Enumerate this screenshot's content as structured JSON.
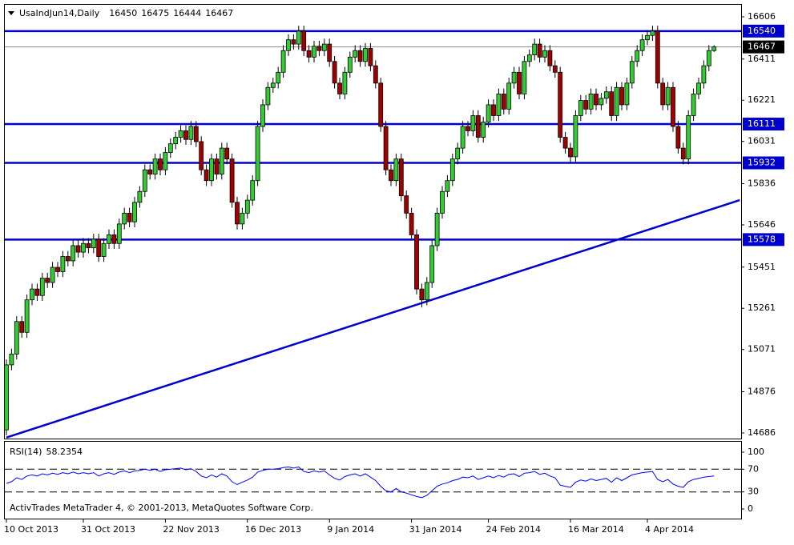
{
  "chart_data": {
    "type": "candlestick",
    "title": "UsaIndJun14,Daily",
    "categories": [
      "10 Oct 2013",
      null,
      null,
      null,
      null,
      null,
      null,
      null,
      null,
      null,
      null,
      null,
      null,
      null,
      null,
      "31 Oct 2013",
      null,
      null,
      null,
      null,
      null,
      null,
      null,
      null,
      null,
      null,
      null,
      null,
      null,
      null,
      null,
      "22 Nov 2013",
      null,
      null,
      null,
      null,
      null,
      null,
      null,
      null,
      null,
      null,
      null,
      null,
      null,
      null,
      null,
      "16 Dec 2013",
      null,
      null,
      null,
      null,
      null,
      null,
      null,
      null,
      null,
      null,
      null,
      null,
      null,
      null,
      null,
      "9 Jan 2014",
      null,
      null,
      null,
      null,
      null,
      null,
      null,
      null,
      null,
      null,
      null,
      null,
      null,
      null,
      null,
      "31 Jan 2014",
      null,
      null,
      null,
      null,
      null,
      null,
      null,
      null,
      null,
      null,
      null,
      null,
      null,
      null,
      "24 Feb 2014",
      null,
      null,
      null,
      null,
      null,
      null,
      null,
      null,
      null,
      null,
      null,
      null,
      null,
      null,
      null,
      "16 Mar 2014",
      null,
      null,
      null,
      null,
      null,
      null,
      null,
      null,
      null,
      null,
      null,
      null,
      null,
      null,
      "4 Apr 2014",
      null,
      null,
      null,
      null,
      null,
      null,
      null,
      null,
      null,
      null,
      null,
      null,
      null
    ],
    "open": [
      14700,
      15000,
      15050,
      15200,
      15150,
      15300,
      15350,
      15320,
      15400,
      15380,
      15450,
      15430,
      15500,
      15480,
      15550,
      15520,
      15560,
      15540,
      15580,
      15500,
      15560,
      15600,
      15560,
      15650,
      15700,
      15660,
      15750,
      15800,
      15900,
      15880,
      15950,
      15900,
      15980,
      16020,
      16050,
      16080,
      16040,
      16100,
      16030,
      15900,
      15850,
      15950,
      15880,
      16000,
      15950,
      15750,
      15650,
      15700,
      15760,
      15850,
      16100,
      16200,
      16280,
      16300,
      16350,
      16450,
      16500,
      16480,
      16540,
      16450,
      16420,
      16470,
      16450,
      16480,
      16400,
      16300,
      16250,
      16350,
      16420,
      16450,
      16400,
      16460,
      16380,
      16300,
      16100,
      15900,
      15850,
      15950,
      15780,
      15700,
      15600,
      15350,
      15300,
      15380,
      15550,
      15700,
      15800,
      15850,
      15950,
      16000,
      16100,
      16080,
      16150,
      16050,
      16120,
      16200,
      16150,
      16250,
      16180,
      16300,
      16350,
      16250,
      16400,
      16430,
      16480,
      16420,
      16450,
      16380,
      16350,
      16050,
      16000,
      15960,
      16150,
      16220,
      16180,
      16250,
      16200,
      16230,
      16260,
      16150,
      16280,
      16200,
      16300,
      16400,
      16450,
      16500,
      16520,
      16540,
      16300,
      16200,
      16280,
      16100,
      16000,
      15950,
      16150,
      16250,
      16300,
      16380,
      16450
    ],
    "high": [
      15025,
      15075,
      15225,
      15225,
      15325,
      15375,
      15375,
      15425,
      15425,
      15475,
      15475,
      15525,
      15525,
      15575,
      15575,
      15585,
      15585,
      15605,
      15605,
      15585,
      15625,
      15625,
      15675,
      15725,
      15725,
      15775,
      15825,
      15925,
      15925,
      15975,
      15975,
      16005,
      16045,
      16075,
      16105,
      16105,
      16125,
      16125,
      16055,
      15925,
      15975,
      15975,
      16025,
      16025,
      15975,
      15775,
      15725,
      15785,
      15875,
      16125,
      16225,
      16305,
      16325,
      16375,
      16475,
      16525,
      16525,
      16565,
      16565,
      16475,
      16495,
      16495,
      16505,
      16505,
      16425,
      16325,
      16375,
      16445,
      16475,
      16475,
      16485,
      16485,
      16405,
      16325,
      16125,
      15925,
      15975,
      15975,
      15805,
      15725,
      15625,
      15375,
      15405,
      15575,
      15725,
      15825,
      15875,
      15975,
      16025,
      16125,
      16125,
      16175,
      16175,
      16145,
      16225,
      16225,
      16275,
      16275,
      16325,
      16375,
      16375,
      16425,
      16455,
      16505,
      16505,
      16475,
      16475,
      16405,
      16375,
      16075,
      16025,
      16175,
      16245,
      16245,
      16275,
      16275,
      16255,
      16285,
      16285,
      16305,
      16305,
      16325,
      16425,
      16475,
      16525,
      16545,
      16565,
      16565,
      16325,
      16305,
      16305,
      16125,
      16025,
      16175,
      16275,
      16325,
      16405,
      16475,
      16475
    ],
    "low": [
      14675,
      14975,
      15025,
      15125,
      15125,
      15275,
      15295,
      15295,
      15355,
      15355,
      15405,
      15405,
      15455,
      15455,
      15495,
      15495,
      15515,
      15515,
      15475,
      15475,
      15535,
      15535,
      15535,
      15625,
      15635,
      15635,
      15725,
      15775,
      15855,
      15855,
      15875,
      15875,
      15955,
      15995,
      16025,
      16015,
      16015,
      16005,
      15875,
      15825,
      15825,
      15855,
      15855,
      15925,
      15725,
      15625,
      15625,
      15675,
      15735,
      15825,
      16075,
      16175,
      16255,
      16275,
      16325,
      16425,
      16455,
      16455,
      16425,
      16395,
      16395,
      16425,
      16425,
      16375,
      16275,
      16225,
      16225,
      16325,
      16395,
      16375,
      16375,
      16355,
      16275,
      16075,
      15875,
      15825,
      15825,
      15755,
      15675,
      15575,
      15325,
      15265,
      15275,
      15355,
      15525,
      15675,
      15775,
      15825,
      15925,
      15975,
      16055,
      16055,
      16025,
      16025,
      16095,
      16125,
      16125,
      16155,
      16155,
      16275,
      16225,
      16225,
      16375,
      16405,
      16395,
      16395,
      16355,
      16325,
      16025,
      15975,
      15935,
      15935,
      16125,
      16155,
      16155,
      16175,
      16175,
      16205,
      16125,
      16125,
      16175,
      16175,
      16275,
      16375,
      16425,
      16475,
      16495,
      16275,
      16175,
      16175,
      16075,
      15975,
      15925,
      15925,
      16125,
      16225,
      16275,
      16355,
      16444
    ],
    "close": [
      15000,
      15050,
      15200,
      15150,
      15300,
      15350,
      15320,
      15400,
      15380,
      15450,
      15430,
      15500,
      15480,
      15550,
      15520,
      15560,
      15540,
      15580,
      15500,
      15560,
      15600,
      15560,
      15650,
      15700,
      15660,
      15750,
      15800,
      15900,
      15880,
      15950,
      15900,
      15980,
      16020,
      16050,
      16080,
      16040,
      16100,
      16030,
      15900,
      15850,
      15950,
      15880,
      16000,
      15950,
      15750,
      15650,
      15700,
      15760,
      15850,
      16100,
      16200,
      16280,
      16300,
      16350,
      16450,
      16500,
      16480,
      16540,
      16450,
      16420,
      16470,
      16450,
      16480,
      16400,
      16300,
      16250,
      16350,
      16420,
      16450,
      16400,
      16460,
      16380,
      16300,
      16100,
      15900,
      15850,
      15950,
      15780,
      15700,
      15600,
      15350,
      15300,
      15380,
      15550,
      15700,
      15800,
      15850,
      15950,
      16000,
      16100,
      16080,
      16150,
      16050,
      16120,
      16200,
      16150,
      16250,
      16180,
      16300,
      16350,
      16250,
      16400,
      16430,
      16480,
      16420,
      16450,
      16380,
      16350,
      16050,
      16000,
      15960,
      16150,
      16220,
      16180,
      16250,
      16200,
      16230,
      16260,
      16150,
      16280,
      16200,
      16300,
      16400,
      16450,
      16500,
      16520,
      16540,
      16300,
      16200,
      16280,
      16100,
      16000,
      15950,
      16150,
      16250,
      16300,
      16380,
      16450,
      16467
    ],
    "up_color": "#33cc33",
    "down_color": "#a00000",
    "ylim": [
      14660,
      16665
    ],
    "yticks": [
      16606,
      16411,
      16221,
      16031,
      15836,
      15646,
      15451,
      15261,
      15071,
      14876,
      14686
    ],
    "levels": [
      16540,
      16111,
      15932,
      15578
    ],
    "level_color": "#0000cc",
    "trendline": {
      "x": [
        0,
        143
      ],
      "y": [
        14665,
        15760
      ],
      "color": "#0000cc"
    },
    "indicator": {
      "name": "RSI(14)",
      "color": "#0000ff",
      "ylim": [
        0,
        100
      ],
      "yticks": [
        100,
        70,
        30,
        0
      ],
      "values": [
        45,
        48,
        55,
        52,
        58,
        60,
        58,
        62,
        60,
        63,
        61,
        64,
        62,
        65,
        62,
        64,
        62,
        64,
        58,
        62,
        64,
        61,
        65,
        67,
        64,
        67,
        68,
        70,
        68,
        70,
        66,
        69,
        70,
        71,
        72,
        69,
        71,
        66,
        58,
        55,
        60,
        56,
        62,
        58,
        48,
        43,
        47,
        51,
        56,
        65,
        68,
        70,
        70,
        71,
        73,
        74,
        72,
        74,
        66,
        64,
        67,
        65,
        67,
        60,
        54,
        51,
        57,
        60,
        62,
        58,
        62,
        56,
        50,
        40,
        32,
        30,
        36,
        30,
        28,
        25,
        22,
        20,
        24,
        32,
        40,
        44,
        46,
        50,
        52,
        56,
        55,
        58,
        52,
        55,
        58,
        55,
        59,
        56,
        61,
        62,
        57,
        63,
        64,
        66,
        61,
        63,
        58,
        55,
        42,
        40,
        38,
        47,
        51,
        49,
        53,
        50,
        52,
        54,
        47,
        55,
        50,
        55,
        60,
        62,
        64,
        65,
        66,
        52,
        48,
        52,
        44,
        40,
        38,
        48,
        52,
        54,
        56,
        57,
        58.2354
      ]
    },
    "footer": "ActivTrades MetaTrader 4, © 2001-2013, MetaQuotes Software Corp."
  }
}
